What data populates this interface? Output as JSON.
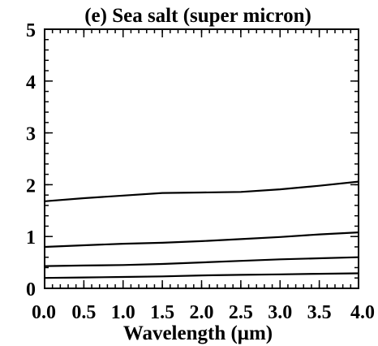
{
  "chart_data": {
    "type": "line",
    "title": "(e) Sea salt (super micron)",
    "xlabel": "Wavelength (μm)",
    "ylabel": "",
    "xlim": [
      0.0,
      4.0
    ],
    "ylim": [
      0,
      5
    ],
    "xticks": [
      0.0,
      0.5,
      1.0,
      1.5,
      2.0,
      2.5,
      3.0,
      3.5,
      4.0
    ],
    "xtick_labels": [
      "0.0",
      "0.5",
      "1.0",
      "1.5",
      "2.0",
      "2.5",
      "3.0",
      "3.5",
      "4.0"
    ],
    "yticks": [
      0,
      1,
      2,
      3,
      4,
      5
    ],
    "ytick_labels": [
      "0",
      "1",
      "2",
      "3",
      "4",
      "5"
    ],
    "grid": false,
    "legend": "none",
    "series": [
      {
        "x": [
          0.0,
          0.5,
          1.0,
          1.5,
          2.0,
          2.5,
          3.0,
          3.5,
          4.0
        ],
        "y": [
          1.68,
          1.74,
          1.79,
          1.84,
          1.85,
          1.86,
          1.91,
          1.98,
          2.06
        ],
        "style": "solid",
        "color": "#000000"
      },
      {
        "x": [
          0.0,
          0.5,
          1.0,
          1.5,
          2.0,
          2.5,
          3.0,
          3.5,
          4.0
        ],
        "y": [
          0.8,
          0.83,
          0.86,
          0.88,
          0.91,
          0.95,
          0.99,
          1.04,
          1.08
        ],
        "style": "solid",
        "color": "#000000"
      },
      {
        "x": [
          0.0,
          0.5,
          1.0,
          1.5,
          2.0,
          2.5,
          3.0,
          3.5,
          4.0
        ],
        "y": [
          0.43,
          0.44,
          0.45,
          0.47,
          0.5,
          0.53,
          0.56,
          0.58,
          0.6
        ],
        "style": "solid",
        "color": "#000000"
      },
      {
        "x": [
          0.0,
          0.5,
          1.0,
          1.5,
          2.0,
          2.5,
          3.0,
          3.5,
          4.0
        ],
        "y": [
          0.2,
          0.21,
          0.22,
          0.23,
          0.25,
          0.26,
          0.27,
          0.28,
          0.29
        ],
        "style": "solid",
        "color": "#000000"
      }
    ]
  }
}
